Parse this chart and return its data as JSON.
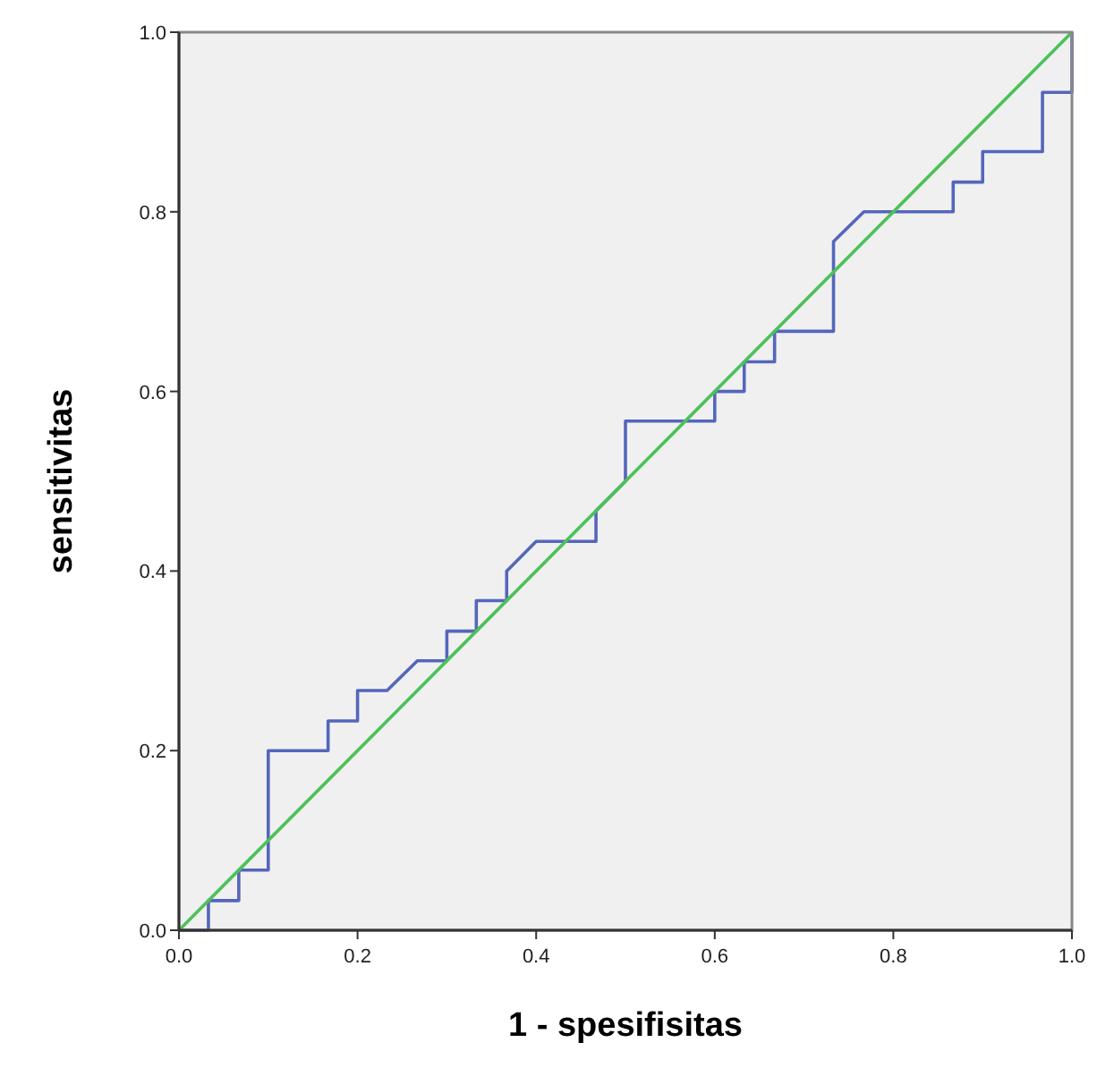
{
  "chart_data": {
    "type": "line",
    "xlabel": "1 - spesifisitas",
    "ylabel": "sensitivitas",
    "xlim": [
      0,
      1
    ],
    "ylim": [
      0,
      1
    ],
    "xticks": [
      {
        "value": 0,
        "label": "0.0"
      },
      {
        "value": 0.2,
        "label": "0.2"
      },
      {
        "value": 0.4,
        "label": "0.4"
      },
      {
        "value": 0.6,
        "label": "0.6"
      },
      {
        "value": 0.8,
        "label": "0.8"
      },
      {
        "value": 1,
        "label": "1.0"
      }
    ],
    "yticks": [
      {
        "value": 0,
        "label": "0.0"
      },
      {
        "value": 0.2,
        "label": "0.2"
      },
      {
        "value": 0.4,
        "label": "0.4"
      },
      {
        "value": 0.6,
        "label": "0.6"
      },
      {
        "value": 0.8,
        "label": "0.8"
      },
      {
        "value": 1,
        "label": "1.0"
      }
    ],
    "grid": false,
    "series": [
      {
        "color": "#5466bb",
        "x": [
          0,
          0.033,
          0.033,
          0.067,
          0.067,
          0.1,
          0.1,
          0.167,
          0.167,
          0.2,
          0.2,
          0.233,
          0.267,
          0.3,
          0.3,
          0.333,
          0.333,
          0.367,
          0.367,
          0.4,
          0.467,
          0.467,
          0.5,
          0.5,
          0.6,
          0.6,
          0.633,
          0.633,
          0.667,
          0.667,
          0.733,
          0.733,
          0.767,
          0.867,
          0.867,
          0.9,
          0.9,
          0.967,
          0.967,
          1,
          1
        ],
        "values": [
          0,
          0,
          0.033,
          0.033,
          0.067,
          0.067,
          0.2,
          0.2,
          0.233,
          0.233,
          0.267,
          0.267,
          0.3,
          0.3,
          0.333,
          0.333,
          0.367,
          0.367,
          0.4,
          0.433,
          0.433,
          0.467,
          0.5,
          0.567,
          0.567,
          0.6,
          0.6,
          0.633,
          0.633,
          0.667,
          0.667,
          0.767,
          0.8,
          0.8,
          0.833,
          0.833,
          0.867,
          0.867,
          0.933,
          0.933,
          1
        ]
      },
      {
        "color": "#4cc15a",
        "x": [
          0,
          1
        ],
        "values": [
          0,
          1
        ]
      }
    ]
  }
}
